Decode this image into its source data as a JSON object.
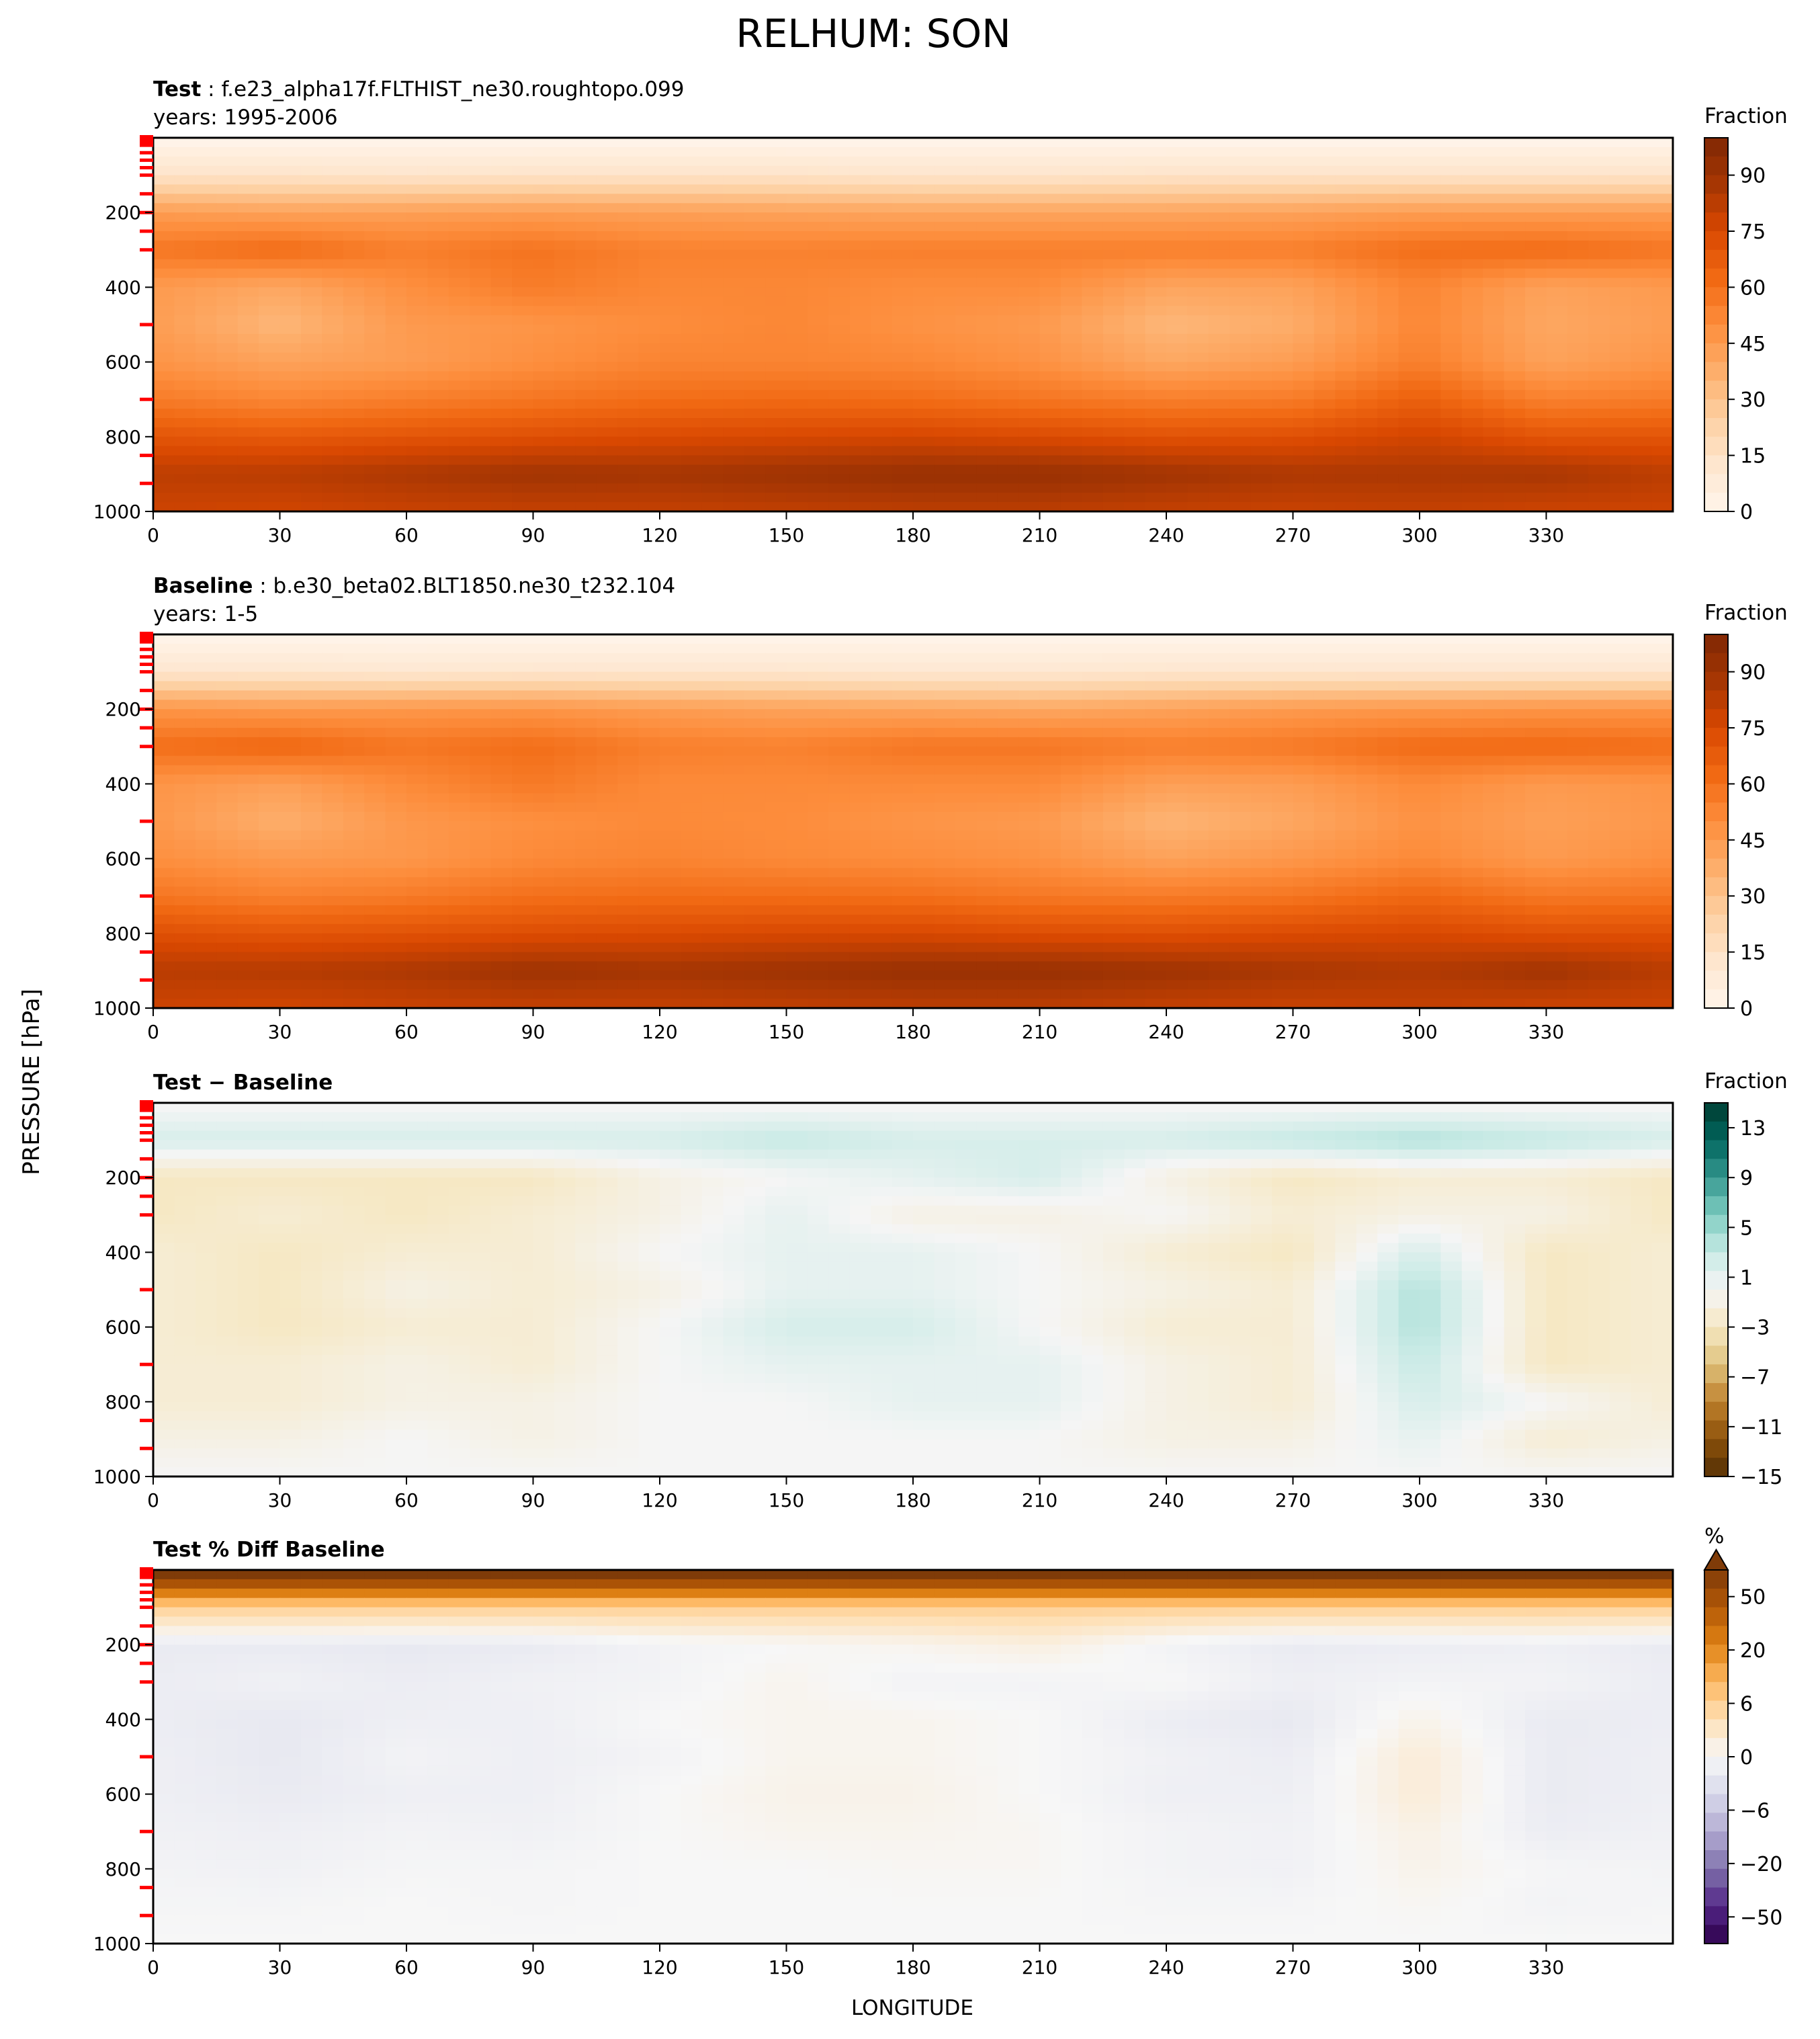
{
  "figure": {
    "title": "RELHUM: SON",
    "ylabel": "PRESSURE [hPa]",
    "xlabel": "LONGITUDE"
  },
  "colors": {
    "oranges": [
      "#fff5eb",
      "#fee6ce",
      "#fdd0a2",
      "#fdae6b",
      "#fd8d3c",
      "#f16913",
      "#d94801",
      "#a63603",
      "#7f2704"
    ],
    "brbg": [
      "#543005",
      "#8c510a",
      "#bf812d",
      "#dfc27d",
      "#f6e8c3",
      "#f5f5f5",
      "#c7eae5",
      "#80cdc1",
      "#35978f",
      "#01665e",
      "#003c30"
    ],
    "puor": [
      "#2d004b",
      "#542788",
      "#8073ac",
      "#b2abd2",
      "#d8daeb",
      "#f7f7f7",
      "#fee0b6",
      "#fdb863",
      "#e08214",
      "#b35806",
      "#7f3b08"
    ],
    "level_marker": "#ff0000"
  },
  "chart_data": [
    {
      "type": "heatmap",
      "panel_label": "Test",
      "case": "f.e23_alpha17f.FLTHIST_ne30.roughtopo.099",
      "years": "years: 1995-2006",
      "xlabel": "",
      "ylabel": "PRESSURE [hPa]",
      "x_ticks": [
        "0",
        "30",
        "60",
        "90",
        "120",
        "150",
        "180",
        "210",
        "240",
        "270",
        "300",
        "330"
      ],
      "y_ticks": [
        "200",
        "400",
        "600",
        "800",
        "1000"
      ],
      "xlim": [
        0,
        360
      ],
      "ylim": [
        1000,
        0
      ],
      "colorbar": {
        "label": "Fraction",
        "ticks": [
          "90",
          "75",
          "60",
          "45",
          "30",
          "15",
          "0"
        ],
        "range": [
          0,
          100
        ],
        "cmap": "oranges",
        "extend": "none"
      },
      "grid": {
        "lons": [
          0,
          30,
          60,
          90,
          120,
          150,
          180,
          210,
          240,
          270,
          300,
          330,
          360
        ],
        "levels": [
          10,
          100,
          200,
          300,
          400,
          500,
          600,
          700,
          800,
          900,
          1000
        ],
        "values": [
          [
            1,
            1,
            1,
            1,
            1,
            1,
            1,
            1,
            1,
            1,
            1,
            1,
            1
          ],
          [
            14,
            14,
            13,
            14,
            14,
            14,
            13,
            13,
            14,
            14,
            14,
            14,
            14
          ],
          [
            44,
            42,
            43,
            44,
            43,
            42,
            41,
            41,
            41,
            42,
            44,
            44,
            44
          ],
          [
            58,
            62,
            55,
            59,
            54,
            54,
            55,
            55,
            55,
            55,
            61,
            62,
            58
          ],
          [
            45,
            40,
            49,
            56,
            52,
            52,
            50,
            50,
            41,
            42,
            53,
            42,
            45
          ],
          [
            44,
            34,
            45,
            47,
            50,
            52,
            48,
            45,
            34,
            38,
            52,
            40,
            44
          ],
          [
            47,
            42,
            44,
            49,
            53,
            53,
            52,
            48,
            40,
            44,
            55,
            42,
            47
          ],
          [
            56,
            52,
            55,
            58,
            61,
            62,
            61,
            58,
            55,
            56,
            66,
            54,
            56
          ],
          [
            70,
            68,
            70,
            72,
            74,
            75,
            76,
            74,
            71,
            72,
            77,
            70,
            70
          ],
          [
            82,
            83,
            86,
            89,
            88,
            90,
            92,
            92,
            89,
            86,
            86,
            87,
            82
          ],
          [
            78,
            77,
            79,
            80,
            80,
            81,
            82,
            82,
            80,
            79,
            80,
            78,
            78
          ]
        ]
      }
    },
    {
      "type": "heatmap",
      "panel_label": "Baseline",
      "case": "b.e30_beta02.BLT1850.ne30_t232.104",
      "years": "years: 1-5",
      "xlabel": "",
      "ylabel": "PRESSURE [hPa]",
      "x_ticks": [
        "0",
        "30",
        "60",
        "90",
        "120",
        "150",
        "180",
        "210",
        "240",
        "270",
        "300",
        "330"
      ],
      "y_ticks": [
        "200",
        "400",
        "600",
        "800",
        "1000"
      ],
      "xlim": [
        0,
        360
      ],
      "ylim": [
        1000,
        0
      ],
      "colorbar": {
        "label": "Fraction",
        "ticks": [
          "90",
          "75",
          "60",
          "45",
          "30",
          "15",
          "0"
        ],
        "range": [
          0,
          100
        ],
        "cmap": "oranges",
        "extend": "none"
      },
      "grid": {
        "lons": [
          0,
          30,
          60,
          90,
          120,
          150,
          180,
          210,
          240,
          270,
          300,
          330,
          360
        ],
        "levels": [
          10,
          100,
          200,
          300,
          400,
          500,
          600,
          700,
          800,
          900,
          1000
        ],
        "values": [
          [
            1,
            1,
            1,
            1,
            1,
            1,
            1,
            1,
            1,
            1,
            1,
            1,
            1
          ],
          [
            12,
            12,
            11,
            12,
            12,
            12,
            11,
            11,
            12,
            12,
            12,
            12,
            12
          ],
          [
            47,
            45,
            46,
            47,
            44,
            42,
            41,
            40,
            42,
            45,
            46,
            47,
            47
          ],
          [
            61,
            64,
            58,
            61,
            55,
            54,
            58,
            58,
            55,
            57,
            62,
            63,
            61
          ],
          [
            47,
            43,
            51,
            57,
            51,
            51,
            51,
            51,
            43,
            44,
            51,
            45,
            47
          ],
          [
            46,
            37,
            46,
            49,
            51,
            50,
            47,
            45,
            35,
            40,
            48,
            43,
            46
          ],
          [
            49,
            45,
            46,
            51,
            53,
            51,
            50,
            48,
            42,
            46,
            51,
            45,
            49
          ],
          [
            58,
            54,
            56,
            60,
            61,
            61,
            60,
            57,
            56,
            58,
            63,
            57,
            58
          ],
          [
            72,
            70,
            71,
            73,
            74,
            75,
            75,
            73,
            72,
            74,
            75,
            72,
            72
          ],
          [
            83,
            84,
            86,
            90,
            88,
            90,
            92,
            92,
            90,
            87,
            85,
            89,
            83
          ],
          [
            78,
            77,
            79,
            80,
            80,
            81,
            82,
            82,
            80,
            79,
            80,
            78,
            78
          ]
        ]
      }
    },
    {
      "type": "heatmap",
      "panel_label": "Test − Baseline",
      "case": "",
      "years": "",
      "xlabel": "",
      "ylabel": "PRESSURE [hPa]",
      "x_ticks": [
        "0",
        "30",
        "60",
        "90",
        "120",
        "150",
        "180",
        "210",
        "240",
        "270",
        "300",
        "330"
      ],
      "y_ticks": [
        "200",
        "400",
        "600",
        "800",
        "1000"
      ],
      "xlim": [
        0,
        360
      ],
      "ylim": [
        1000,
        0
      ],
      "colorbar": {
        "label": "Fraction",
        "ticks": [
          "13",
          "9",
          "5",
          "1",
          "−3",
          "−7",
          "−11",
          "−15"
        ],
        "range": [
          -15,
          15
        ],
        "cmap": "brbg",
        "extend": "none"
      },
      "grid": {
        "lons": [
          0,
          30,
          60,
          90,
          120,
          150,
          180,
          210,
          240,
          270,
          300,
          330,
          360
        ],
        "levels": [
          10,
          100,
          200,
          300,
          400,
          500,
          600,
          700,
          800,
          900,
          1000
        ],
        "values": [
          [
            0,
            0,
            0,
            0,
            0,
            0,
            0,
            0,
            0,
            0,
            0,
            0,
            0
          ],
          [
            2,
            2,
            2,
            2,
            2,
            3,
            2,
            2,
            2,
            3,
            4,
            3,
            2
          ],
          [
            -3,
            -3,
            -3,
            -3,
            -1,
            0,
            1,
            2,
            -1,
            -3,
            -2,
            -2,
            -3
          ],
          [
            -3,
            -2,
            -3,
            -2,
            -1,
            1,
            -1,
            -1,
            0,
            -2,
            -1,
            -1,
            -3
          ],
          [
            -2,
            -3,
            -2,
            -2,
            0,
            1,
            1,
            0,
            -2,
            -3,
            2,
            -3,
            -2
          ],
          [
            -2,
            -3,
            -1,
            -2,
            -1,
            1,
            1,
            0,
            -1,
            -2,
            4,
            -3,
            -2
          ],
          [
            -2,
            -3,
            -2,
            -2,
            0,
            2,
            2,
            0,
            -2,
            -2,
            4,
            -3,
            -2
          ],
          [
            -2,
            -2,
            -1,
            -2,
            0,
            1,
            1,
            1,
            -1,
            -2,
            3,
            -3,
            -2
          ],
          [
            -2,
            -2,
            -1,
            -1,
            0,
            0,
            1,
            1,
            -1,
            -2,
            2,
            0,
            -2
          ],
          [
            -1,
            -1,
            0,
            -1,
            0,
            0,
            0,
            0,
            -1,
            -1,
            1,
            -2,
            -1
          ],
          [
            0,
            0,
            0,
            0,
            0,
            0,
            0,
            0,
            0,
            0,
            0,
            0,
            0
          ]
        ]
      }
    },
    {
      "type": "heatmap",
      "panel_label": "Test % Diff Baseline",
      "case": "",
      "years": "",
      "xlabel": "LONGITUDE",
      "ylabel": "PRESSURE [hPa]",
      "x_ticks": [
        "0",
        "30",
        "60",
        "90",
        "120",
        "150",
        "180",
        "210",
        "240",
        "270",
        "300",
        "330"
      ],
      "y_ticks": [
        "200",
        "400",
        "600",
        "800",
        "1000"
      ],
      "xlim": [
        0,
        360
      ],
      "ylim": [
        1000,
        0
      ],
      "colorbar": {
        "label": "%",
        "ticks": [
          "50",
          "20",
          "6",
          "0",
          "−6",
          "−20",
          "−50"
        ],
        "range": [
          -70,
          70
        ],
        "cmap": "puor",
        "extend": "max"
      },
      "grid": {
        "lons": [
          0,
          30,
          60,
          90,
          120,
          150,
          180,
          210,
          240,
          270,
          300,
          330,
          360
        ],
        "levels": [
          10,
          100,
          200,
          300,
          400,
          500,
          600,
          700,
          800,
          900,
          1000
        ],
        "values": [
          [
            75,
            75,
            75,
            75,
            75,
            75,
            75,
            75,
            75,
            75,
            75,
            75,
            75
          ],
          [
            20,
            20,
            20,
            20,
            20,
            20,
            20,
            20,
            20,
            20,
            20,
            20,
            20
          ],
          [
            -6,
            -6,
            -7,
            -6,
            -2,
            0,
            2,
            5,
            -2,
            -6,
            -5,
            -4,
            -6
          ],
          [
            -5,
            -3,
            -5,
            -3,
            -2,
            2,
            -2,
            -2,
            0,
            -4,
            -2,
            -2,
            -5
          ],
          [
            -5,
            -7,
            -4,
            -4,
            0,
            2,
            2,
            0,
            -5,
            -7,
            3,
            -6,
            -5
          ],
          [
            -4,
            -7,
            -2,
            -4,
            -2,
            2,
            2,
            0,
            -3,
            -5,
            7,
            -6,
            -4
          ],
          [
            -4,
            -6,
            -4,
            -4,
            0,
            3,
            3,
            0,
            -4,
            -4,
            7,
            -6,
            -4
          ],
          [
            -3,
            -4,
            -2,
            -3,
            0,
            2,
            2,
            1,
            -2,
            -3,
            4,
            -5,
            -3
          ],
          [
            -2,
            -3,
            -1,
            -1,
            0,
            0,
            1,
            1,
            -2,
            -3,
            3,
            -1,
            -2
          ],
          [
            -1,
            -1,
            0,
            -1,
            0,
            0,
            0,
            0,
            -1,
            -1,
            1,
            -2,
            -1
          ],
          [
            0,
            0,
            0,
            0,
            0,
            0,
            0,
            0,
            0,
            0,
            0,
            0,
            0
          ]
        ]
      }
    }
  ]
}
